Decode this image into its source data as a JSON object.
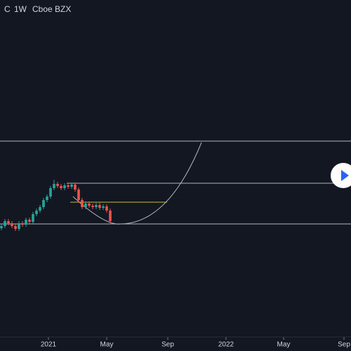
{
  "chart_data": {
    "type": "candlestick",
    "header": [
      "C",
      "1W",
      "Cboe BZX"
    ],
    "x": [
      2,
      7,
      12,
      17,
      22,
      27,
      32,
      37,
      42,
      47,
      52,
      57,
      62,
      67,
      72,
      77,
      82,
      87,
      92,
      97,
      102,
      107,
      112,
      117,
      122,
      127,
      132,
      137,
      142,
      147,
      152,
      157
    ],
    "open": [
      155,
      158,
      165,
      162,
      158,
      154,
      162,
      160,
      167,
      164,
      175,
      180,
      185,
      195,
      200,
      212,
      218,
      215,
      212,
      216,
      214,
      217,
      210,
      195,
      185,
      190,
      187,
      185,
      188,
      184,
      186,
      180
    ],
    "close": [
      158,
      165,
      162,
      158,
      154,
      162,
      160,
      167,
      164,
      175,
      180,
      185,
      195,
      200,
      212,
      218,
      215,
      212,
      216,
      214,
      217,
      210,
      195,
      185,
      190,
      187,
      185,
      188,
      184,
      186,
      180,
      165
    ],
    "high": [
      161,
      168,
      168,
      165,
      161,
      165,
      165,
      170,
      170,
      178,
      183,
      188,
      198,
      203,
      215,
      224,
      221,
      218,
      219,
      219,
      220,
      220,
      213,
      198,
      193,
      193,
      190,
      191,
      191,
      189,
      189,
      183
    ],
    "low": [
      152,
      155,
      159,
      155,
      151,
      151,
      157,
      157,
      161,
      161,
      172,
      177,
      182,
      192,
      197,
      209,
      212,
      209,
      209,
      211,
      211,
      207,
      192,
      182,
      182,
      184,
      182,
      182,
      181,
      181,
      177,
      162
    ],
    "up_color": "#26a69a",
    "down_color": "#ef5350",
    "xlim": [
      0,
      500
    ],
    "ylim": [
      0,
      480
    ],
    "xticks": [
      {
        "value": 69,
        "label": "2021"
      },
      {
        "value": 152,
        "label": "May"
      },
      {
        "value": 239,
        "label": "Sep"
      },
      {
        "value": 322,
        "label": "2022"
      },
      {
        "value": 404,
        "label": "May"
      },
      {
        "value": 490,
        "label": "Sep"
      }
    ]
  }
}
